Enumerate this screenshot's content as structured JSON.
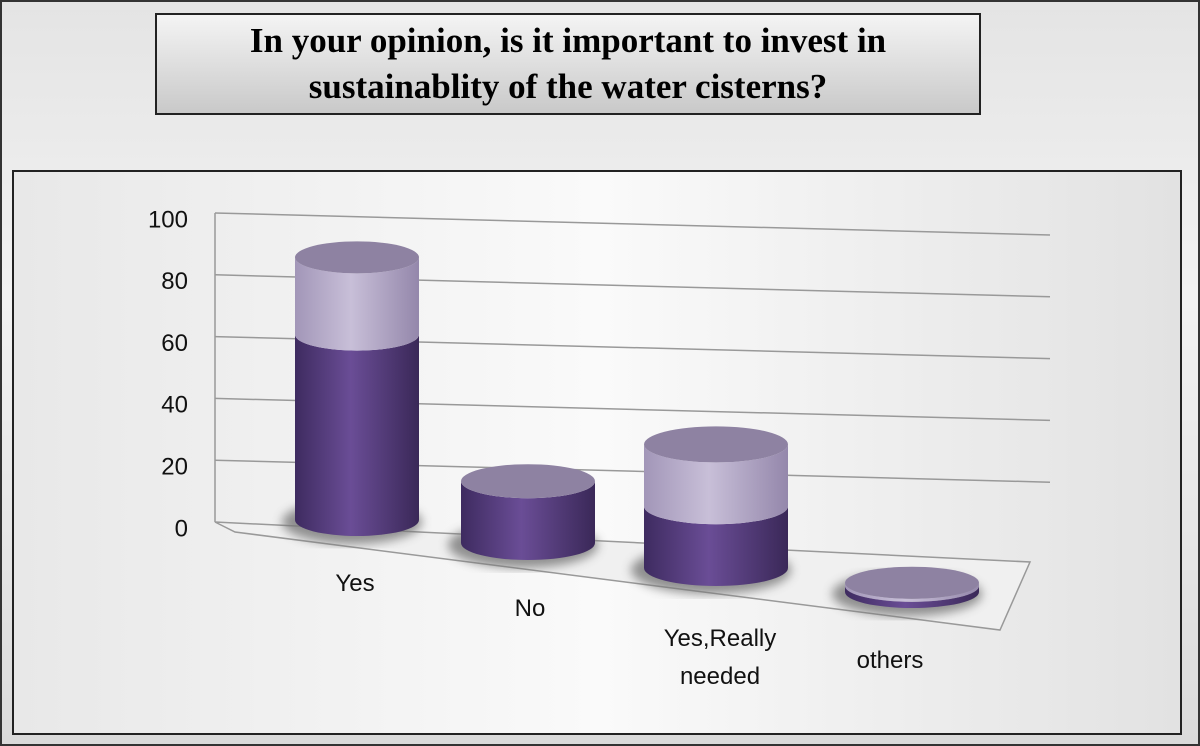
{
  "chart_data": {
    "type": "bar3d-cylinder-stacked",
    "title": "In your opinion, is it important to invest in sustainablity of the water cisterns?",
    "categories": [
      "Yes",
      "No",
      "Yes,Really needed",
      "others"
    ],
    "series": [
      {
        "color": "#5e4488",
        "values": [
          60,
          20,
          20,
          2
        ]
      },
      {
        "color": "#b8add0",
        "values": [
          25,
          0,
          20,
          1
        ]
      }
    ],
    "ylim": [
      0,
      100
    ],
    "yticks": [
      0,
      20,
      40,
      60,
      80,
      100
    ],
    "grid": true
  }
}
